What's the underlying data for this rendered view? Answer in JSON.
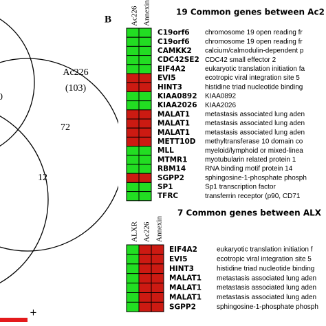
{
  "figure": {
    "panel_label": "B",
    "venn": {
      "set_label": "Ac226",
      "set_count": "(103)",
      "regions": [
        "72",
        "12",
        "0"
      ]
    },
    "scale": {
      "label": "+",
      "color": "#e41a1c"
    },
    "tables": [
      {
        "title": "19 Common genes between Ac2",
        "columns": [
          "Ac226",
          "Annexin"
        ],
        "rows": [
          {
            "gene": "C19orf6",
            "description": "chromosome 19 open reading fr",
            "cells": [
              "#22dd22",
              "#22dd22"
            ]
          },
          {
            "gene": "C19orf6",
            "description": "chromosome 19 open reading fr",
            "cells": [
              "#22dd22",
              "#22dd22"
            ]
          },
          {
            "gene": "CAMKK2",
            "description": "calcium/calmodulin-dependent p",
            "cells": [
              "#22dd22",
              "#22dd22"
            ]
          },
          {
            "gene": "CDC42SE2",
            "description": "CDC42 small effector 2",
            "cells": [
              "#22dd22",
              "#22dd22"
            ]
          },
          {
            "gene": "EIF4A2",
            "description": "eukaryotic translation initiation fa",
            "cells": [
              "#22dd22",
              "#22dd22"
            ]
          },
          {
            "gene": "EVI5",
            "description": "ecotropic viral integration site 5",
            "cells": [
              "#cc1a12",
              "#cc1a12"
            ]
          },
          {
            "gene": "HINT3",
            "description": "histidine triad nucleotide binding",
            "cells": [
              "#cc1a12",
              "#cc1a12"
            ]
          },
          {
            "gene": "KIAA0892",
            "description": "KIAA0892",
            "cells": [
              "#22dd22",
              "#22dd22"
            ]
          },
          {
            "gene": "KIAA2026",
            "description": "KIAA2026",
            "cells": [
              "#22dd22",
              "#22dd22"
            ]
          },
          {
            "gene": "MALAT1",
            "description": "metastasis associated lung aden",
            "cells": [
              "#cc1a12",
              "#cc1a12"
            ]
          },
          {
            "gene": "MALAT1",
            "description": "metastasis associated lung aden",
            "cells": [
              "#cc1a12",
              "#cc1a12"
            ]
          },
          {
            "gene": "MALAT1",
            "description": "metastasis associated lung aden",
            "cells": [
              "#cc1a12",
              "#cc1a12"
            ]
          },
          {
            "gene": "METT10D",
            "description": "methyltransferase 10 domain co",
            "cells": [
              "#cc1a12",
              "#cc1a12"
            ]
          },
          {
            "gene": "MLL",
            "description": "myeloid/lymphoid or mixed-linea",
            "cells": [
              "#22dd22",
              "#22dd22"
            ]
          },
          {
            "gene": "MTMR1",
            "description": "myotubularin related protein 1",
            "cells": [
              "#22dd22",
              "#22dd22"
            ]
          },
          {
            "gene": "RBM14",
            "description": "RNA binding motif protein 14",
            "cells": [
              "#22dd22",
              "#22dd22"
            ]
          },
          {
            "gene": "SGPP2",
            "description": "sphingosine-1-phosphate phosph",
            "cells": [
              "#cc1a12",
              "#cc1a12"
            ]
          },
          {
            "gene": "SP1",
            "description": "Sp1 transcription factor",
            "cells": [
              "#22dd22",
              "#22dd22"
            ]
          },
          {
            "gene": "TFRC",
            "description": "transferrin receptor (p90, CD71",
            "cells": [
              "#22dd22",
              "#22dd22"
            ]
          }
        ]
      },
      {
        "title": "7 Common genes between ALX",
        "columns": [
          "ALXR",
          "Ac226",
          "Annexin"
        ],
        "rows": [
          {
            "gene": "EIF4A2",
            "description": "eukaryotic translation initiation f",
            "cells": [
              "#22dd22",
              "#cc1a12",
              "#cc1a12"
            ]
          },
          {
            "gene": "EVI5",
            "description": "ecotropic viral integration site 5",
            "cells": [
              "#22dd22",
              "#cc1a12",
              "#cc1a12"
            ]
          },
          {
            "gene": "HINT3",
            "description": "histidine triad nucleotide binding",
            "cells": [
              "#22dd22",
              "#cc1a12",
              "#cc1a12"
            ]
          },
          {
            "gene": "MALAT1",
            "description": "metastasis associated lung aden",
            "cells": [
              "#22dd22",
              "#cc1a12",
              "#cc1a12"
            ]
          },
          {
            "gene": "MALAT1",
            "description": "metastasis associated lung aden",
            "cells": [
              "#22dd22",
              "#cc1a12",
              "#cc1a12"
            ]
          },
          {
            "gene": "MALAT1",
            "description": "metastasis associated lung aden",
            "cells": [
              "#22dd22",
              "#cc1a12",
              "#cc1a12"
            ]
          },
          {
            "gene": "SGPP2",
            "description": "sphingosine-1-phosphate phosph",
            "cells": [
              "#22dd22",
              "#cc1a12",
              "#cc1a12"
            ]
          }
        ]
      }
    ]
  }
}
